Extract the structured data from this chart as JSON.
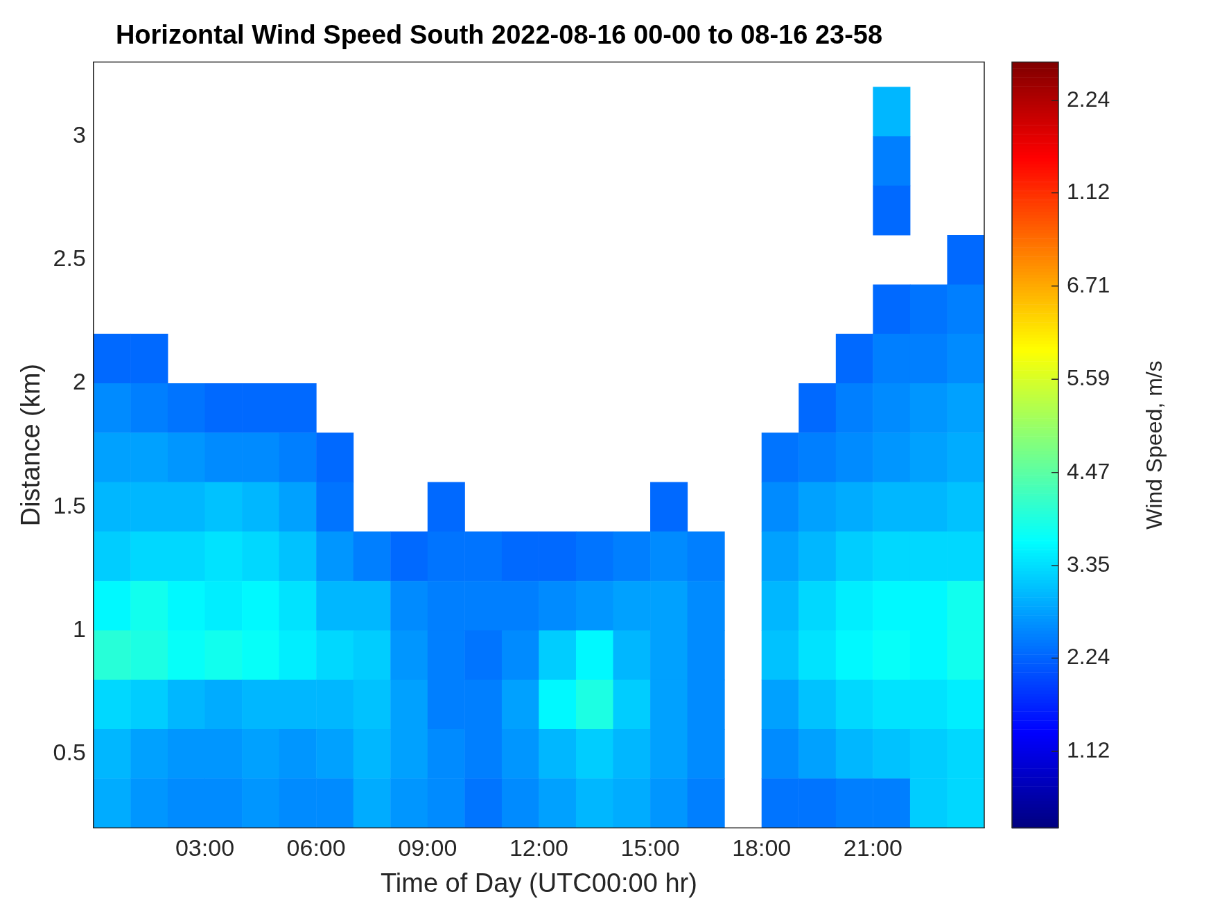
{
  "chart_data": {
    "type": "heatmap",
    "title": "Horizontal Wind Speed South 2022-08-16 00-00 to 08-16 23-58",
    "xlabel": "Time of Day (UTC00:00 hr)",
    "ylabel": "Distance (km)",
    "clabel": "Wind Speed, m/s",
    "x": [
      0.5,
      1.5,
      2.5,
      3.5,
      4.5,
      5.5,
      6.5,
      7.5,
      8.5,
      9.5,
      10.5,
      11.5,
      12.5,
      13.5,
      14.5,
      15.5,
      16.5,
      17.5,
      18.5,
      19.5,
      20.5,
      21.5,
      22.5,
      23.5
    ],
    "y": [
      3.1,
      2.9,
      2.7,
      2.5,
      2.3,
      2.1,
      1.9,
      1.7,
      1.5,
      1.3,
      1.1,
      0.9,
      0.7,
      0.5,
      0.3
    ],
    "cells": [
      [
        null,
        null,
        null,
        null,
        null,
        null,
        null,
        null,
        null,
        null,
        null,
        null,
        null,
        null,
        null,
        null,
        null,
        null,
        null,
        null,
        null,
        3.0,
        null,
        null
      ],
      [
        null,
        null,
        null,
        null,
        null,
        null,
        null,
        null,
        null,
        null,
        null,
        null,
        null,
        null,
        null,
        null,
        null,
        null,
        null,
        null,
        null,
        2.5,
        null,
        null
      ],
      [
        null,
        null,
        null,
        null,
        null,
        null,
        null,
        null,
        null,
        null,
        null,
        null,
        null,
        null,
        null,
        null,
        null,
        null,
        null,
        null,
        null,
        2.3,
        null,
        null
      ],
      [
        null,
        null,
        null,
        null,
        null,
        null,
        null,
        null,
        null,
        null,
        null,
        null,
        null,
        null,
        null,
        null,
        null,
        null,
        null,
        null,
        null,
        null,
        null,
        2.3
      ],
      [
        null,
        null,
        null,
        null,
        null,
        null,
        null,
        null,
        null,
        null,
        null,
        null,
        null,
        null,
        null,
        null,
        null,
        null,
        null,
        null,
        null,
        2.3,
        2.4,
        2.5
      ],
      [
        2.3,
        2.3,
        null,
        null,
        null,
        null,
        null,
        null,
        null,
        null,
        null,
        null,
        null,
        null,
        null,
        null,
        null,
        null,
        null,
        null,
        2.3,
        2.5,
        2.5,
        2.6
      ],
      [
        2.6,
        2.5,
        2.4,
        2.3,
        2.3,
        2.3,
        null,
        null,
        null,
        null,
        null,
        null,
        null,
        null,
        null,
        null,
        null,
        null,
        null,
        2.3,
        2.5,
        2.6,
        2.7,
        2.8
      ],
      [
        2.8,
        2.8,
        2.7,
        2.6,
        2.6,
        2.5,
        2.3,
        null,
        null,
        null,
        null,
        null,
        null,
        null,
        null,
        null,
        null,
        null,
        2.4,
        2.5,
        2.6,
        2.7,
        2.8,
        2.9
      ],
      [
        3.0,
        3.0,
        3.0,
        3.1,
        3.0,
        2.8,
        2.4,
        null,
        null,
        2.3,
        null,
        null,
        null,
        null,
        null,
        2.3,
        null,
        null,
        2.6,
        2.8,
        2.9,
        3.0,
        3.0,
        3.1
      ],
      [
        3.2,
        3.3,
        3.3,
        3.4,
        3.3,
        3.1,
        2.7,
        2.5,
        2.3,
        2.4,
        2.4,
        2.3,
        2.3,
        2.4,
        2.5,
        2.6,
        2.5,
        null,
        2.8,
        3.0,
        3.2,
        3.3,
        3.3,
        3.3
      ],
      [
        3.6,
        3.8,
        3.6,
        3.5,
        3.6,
        3.4,
        3.0,
        3.0,
        2.6,
        2.5,
        2.5,
        2.5,
        2.6,
        2.7,
        2.8,
        2.8,
        2.6,
        null,
        3.0,
        3.3,
        3.5,
        3.6,
        3.6,
        3.8
      ],
      [
        4.0,
        3.9,
        3.7,
        3.8,
        3.7,
        3.5,
        3.3,
        3.2,
        2.7,
        2.5,
        2.4,
        2.6,
        3.2,
        3.6,
        3.0,
        2.8,
        2.6,
        null,
        3.1,
        3.4,
        3.6,
        3.7,
        3.6,
        3.8
      ],
      [
        3.3,
        3.2,
        3.0,
        2.9,
        3.0,
        3.0,
        3.0,
        3.1,
        2.8,
        2.5,
        2.5,
        2.8,
        3.6,
        3.9,
        3.2,
        2.8,
        2.6,
        null,
        2.8,
        3.1,
        3.3,
        3.4,
        3.4,
        3.5
      ],
      [
        3.0,
        2.8,
        2.7,
        2.7,
        2.8,
        2.7,
        2.8,
        3.0,
        2.8,
        2.6,
        2.5,
        2.7,
        3.0,
        3.2,
        3.0,
        2.8,
        2.6,
        null,
        2.6,
        2.8,
        3.0,
        3.1,
        3.2,
        3.3
      ],
      [
        2.9,
        2.7,
        2.6,
        2.6,
        2.7,
        2.6,
        2.6,
        2.9,
        2.7,
        2.6,
        2.4,
        2.6,
        2.8,
        3.0,
        2.9,
        2.7,
        2.5,
        null,
        2.4,
        2.4,
        2.5,
        2.5,
        3.2,
        3.3
      ]
    ],
    "xlim": [
      0,
      24
    ],
    "xticks": [
      {
        "value": 3,
        "label": "03:00"
      },
      {
        "value": 6,
        "label": "06:00"
      },
      {
        "value": 9,
        "label": "09:00"
      },
      {
        "value": 12,
        "label": "12:00"
      },
      {
        "value": 15,
        "label": "15:00"
      },
      {
        "value": 18,
        "label": "18:00"
      },
      {
        "value": 21,
        "label": "21:00"
      }
    ],
    "ylim": [
      0.2,
      3.3
    ],
    "yticks": [
      0.5,
      1,
      1.5,
      2,
      2.5,
      3
    ],
    "clim": [
      0.2,
      9.4
    ],
    "cticks": [
      1.12,
      2.24,
      3.35,
      4.47,
      5.59,
      6.71,
      {
        "value": 7.83,
        "label": null
      },
      {
        "value": 8.94,
        "label": null
      }
    ],
    "annotations": [
      "1.12",
      "2.24"
    ]
  }
}
